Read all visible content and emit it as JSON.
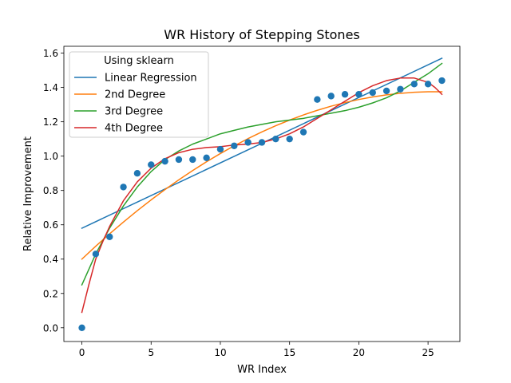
{
  "chart_data": {
    "type": "line",
    "title": "WR History of Stepping Stones",
    "xlabel": "WR Index",
    "ylabel": "Relative Improvement",
    "xlim": [
      -1.3,
      27.3
    ],
    "ylim": [
      -0.08,
      1.64
    ],
    "xticks": [
      0,
      5,
      10,
      15,
      20,
      25
    ],
    "yticks": [
      0.0,
      0.2,
      0.4,
      0.6,
      0.8,
      1.0,
      1.2,
      1.4,
      1.6
    ],
    "grid": false,
    "legend": {
      "title": "Using sklearn",
      "placement": "upper-left"
    },
    "scatter": {
      "color": "#1f77b4",
      "x": [
        0,
        1,
        2,
        3,
        4,
        5,
        6,
        7,
        8,
        9,
        10,
        11,
        12,
        13,
        14,
        15,
        16,
        17,
        18,
        19,
        20,
        21,
        22,
        23,
        24,
        25,
        26
      ],
      "y": [
        0.0,
        0.43,
        0.53,
        0.82,
        0.9,
        0.95,
        0.97,
        0.98,
        0.98,
        0.99,
        1.04,
        1.06,
        1.08,
        1.08,
        1.1,
        1.1,
        1.14,
        1.33,
        1.35,
        1.36,
        1.36,
        1.37,
        1.38,
        1.39,
        1.42,
        1.42,
        1.44
      ]
    },
    "series": [
      {
        "name": "Linear Regression",
        "color": "#1f77b4",
        "x": [
          0,
          26
        ],
        "y": [
          0.58,
          1.57
        ]
      },
      {
        "name": "2nd Degree",
        "color": "#ff7f0e",
        "x": [
          0,
          1,
          2,
          3,
          4,
          5,
          6,
          7,
          8,
          9,
          10,
          11,
          12,
          13,
          14,
          15,
          16,
          17,
          18,
          19,
          20,
          21,
          22,
          23,
          24,
          25,
          26
        ],
        "y": [
          0.4,
          0.475,
          0.547,
          0.616,
          0.682,
          0.745,
          0.805,
          0.862,
          0.916,
          0.967,
          1.015,
          1.06,
          1.102,
          1.141,
          1.177,
          1.21,
          1.24,
          1.267,
          1.291,
          1.312,
          1.33,
          1.345,
          1.357,
          1.366,
          1.372,
          1.375,
          1.375
        ]
      },
      {
        "name": "3rd Degree",
        "color": "#2ca02c",
        "x": [
          0,
          1,
          2,
          3,
          4,
          5,
          6,
          7,
          8,
          9,
          10,
          11,
          12,
          13,
          14,
          15,
          16,
          17,
          18,
          19,
          20,
          21,
          22,
          23,
          24,
          25,
          26
        ],
        "y": [
          0.25,
          0.43,
          0.58,
          0.71,
          0.82,
          0.91,
          0.98,
          1.03,
          1.07,
          1.1,
          1.13,
          1.15,
          1.17,
          1.185,
          1.2,
          1.21,
          1.22,
          1.235,
          1.25,
          1.265,
          1.285,
          1.31,
          1.34,
          1.38,
          1.43,
          1.48,
          1.54
        ]
      },
      {
        "name": "4th Degree",
        "color": "#d62728",
        "x": [
          0,
          0.5,
          1,
          1.5,
          2,
          3,
          4,
          5,
          6,
          7,
          8,
          9,
          10,
          11,
          12,
          13,
          14,
          15,
          16,
          17,
          18,
          19,
          20,
          21,
          22,
          23,
          24,
          25,
          25.5,
          26
        ],
        "y": [
          0.09,
          0.25,
          0.4,
          0.5,
          0.59,
          0.74,
          0.85,
          0.93,
          0.985,
          1.02,
          1.04,
          1.05,
          1.055,
          1.065,
          1.07,
          1.08,
          1.1,
          1.13,
          1.17,
          1.22,
          1.27,
          1.32,
          1.37,
          1.41,
          1.44,
          1.455,
          1.455,
          1.43,
          1.4,
          1.36
        ]
      }
    ]
  }
}
